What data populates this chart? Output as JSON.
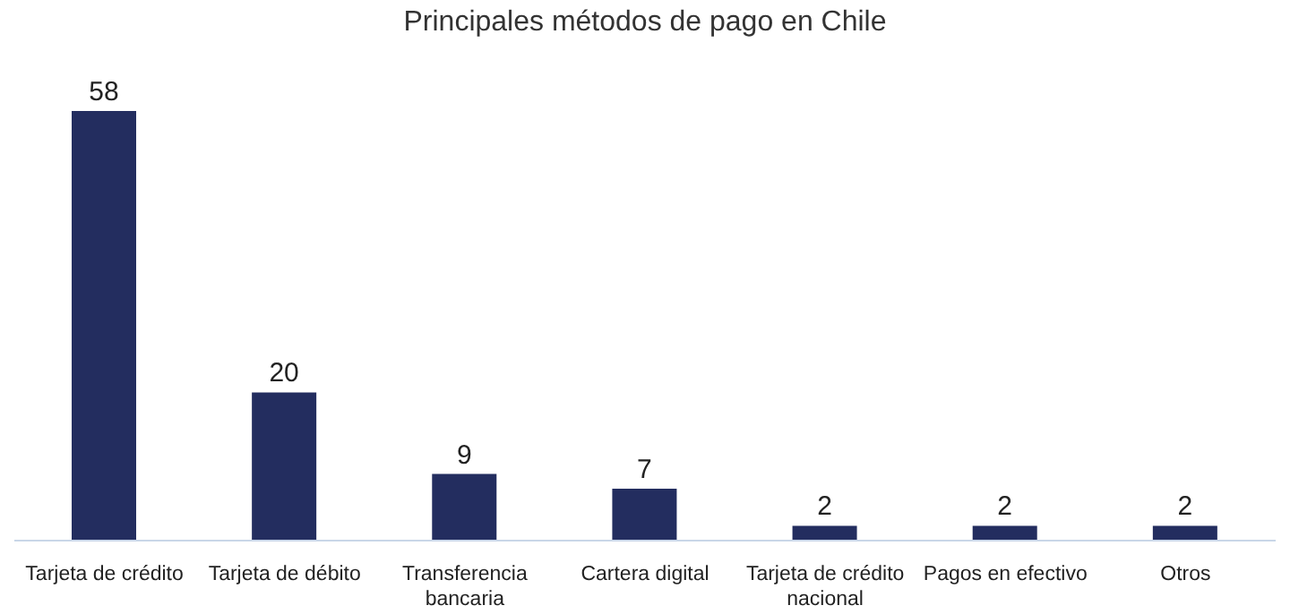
{
  "chart_data": {
    "type": "bar",
    "title": "Principales métodos de pago en Chile",
    "categories": [
      "Tarjeta de crédito",
      "Tarjeta de débito",
      "Transferencia bancaria",
      "Cartera digital",
      "Tarjeta de crédito nacional",
      "Pagos en efectivo",
      "Otros"
    ],
    "values": [
      58,
      20,
      9,
      7,
      2,
      2,
      2
    ],
    "color": "#232d5f",
    "data_labels": true,
    "grid": false,
    "legend": false
  }
}
